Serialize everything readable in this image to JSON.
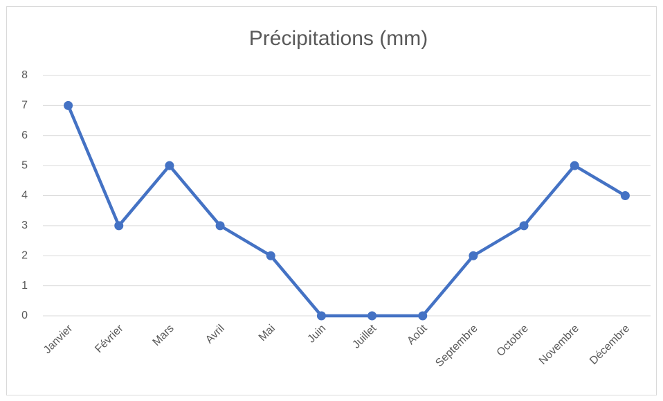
{
  "chart_data": {
    "type": "line",
    "title": "Précipitations (mm)",
    "categories": [
      "Janvier",
      "Février",
      "Mars",
      "Avril",
      "Mai",
      "Juin",
      "Juillet",
      "Août",
      "Septembre",
      "Octobre",
      "Novembre",
      "Décembre"
    ],
    "values": [
      7,
      3,
      5,
      3,
      2,
      0,
      0,
      0,
      2,
      3,
      5,
      4
    ],
    "color": "#4472c4",
    "ylim": [
      0,
      8
    ],
    "yticks": [
      0,
      1,
      2,
      3,
      4,
      5,
      6,
      7,
      8
    ],
    "grid": true
  }
}
